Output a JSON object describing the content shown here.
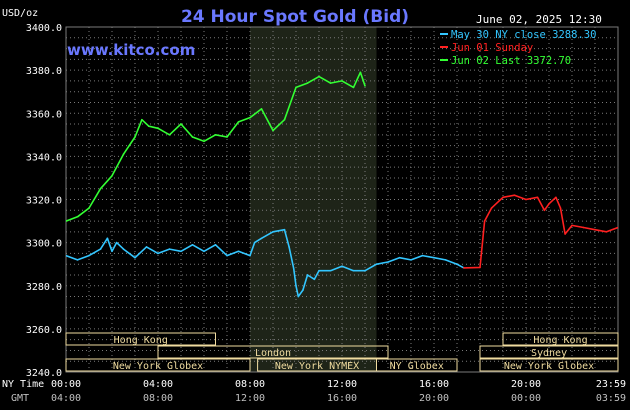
{
  "header": {
    "title": "24 Hour Spot Gold (Bid)",
    "date": "June 02, 2025 12:30",
    "website": "www.kitco.com",
    "currency_label": "USD/oz"
  },
  "legend": {
    "items": [
      {
        "label": "May 30 NY close 3288.30",
        "color": "#33c6ff"
      },
      {
        "label": "Jun 01 Sunday",
        "color": "#ff2020"
      },
      {
        "label": "Jun 02 Last 3372.70",
        "color": "#33ff33"
      }
    ]
  },
  "colors": {
    "background": "#000000",
    "grid": "#7a7a7a",
    "session_box": "#f0dca0",
    "axis_text": "#ffffff",
    "secondary_text": "#c0c0c0",
    "title": "#6a78ff",
    "highlight": "#1e2418"
  },
  "axis_labels": {
    "ny_time": "NY Time",
    "gmt": "GMT"
  },
  "market_sessions": [
    {
      "label": "Hong Kong",
      "start": 0,
      "end": 6.5
    },
    {
      "label": "London",
      "start": 4,
      "end": 14
    },
    {
      "label": "New York Globex",
      "start": 0,
      "end": 8
    },
    {
      "label": "New York NYMEX",
      "start": 8.33,
      "end": 13.5
    },
    {
      "label": "NY Globex",
      "start": 13.5,
      "end": 17
    },
    {
      "label": "Hong Kong",
      "start": 19,
      "end": 24
    },
    {
      "label": "Sydney",
      "start": 18,
      "end": 24
    },
    {
      "label": "New York Globex",
      "start": 18,
      "end": 24
    }
  ],
  "chart_data": {
    "type": "line",
    "ylim": [
      3240,
      3400
    ],
    "xlim": [
      0,
      24
    ],
    "y_ticks": [
      3240,
      3260,
      3280,
      3300,
      3320,
      3340,
      3360,
      3380,
      3400
    ],
    "y_tick_labels": [
      "3240.0",
      "3260.0",
      "3280.0",
      "3300.0",
      "3320.0",
      "3340.0",
      "3360.0",
      "3380.0",
      "3400.0"
    ],
    "x_ticks": [
      0,
      4,
      8,
      12,
      16,
      20,
      24
    ],
    "x_tick_labels_ny": [
      "00:00",
      "04:00",
      "08:00",
      "12:00",
      "16:00",
      "20:00",
      "23:59"
    ],
    "x_tick_labels_gmt": [
      "04:00",
      "08:00",
      "12:00",
      "16:00",
      "20:00",
      "00:00",
      "03:59"
    ],
    "highlight_range": [
      8,
      13.5
    ],
    "grid": true,
    "series": [
      {
        "name": "May 30 NY close 3288.30",
        "color": "#33c6ff",
        "x": [
          0,
          0.5,
          1,
          1.5,
          1.8,
          2,
          2.2,
          2.5,
          3,
          3.5,
          4,
          4.5,
          5,
          5.5,
          6,
          6.5,
          7,
          7.5,
          8,
          8.2,
          8.5,
          9,
          9.5,
          9.7,
          9.9,
          10,
          10.1,
          10.3,
          10.5,
          10.8,
          11,
          11.5,
          12,
          12.5,
          13,
          13.5,
          14,
          14.5,
          15,
          15.5,
          16,
          16.5,
          17,
          17.3
        ],
        "y": [
          3294,
          3292,
          3294,
          3297,
          3302,
          3296,
          3300,
          3297,
          3293,
          3298,
          3295,
          3297,
          3296,
          3299,
          3296,
          3299,
          3294,
          3296,
          3294,
          3300,
          3302,
          3305,
          3306,
          3298,
          3288,
          3280,
          3275,
          3278,
          3285,
          3283,
          3287,
          3287,
          3289,
          3287,
          3287,
          3290,
          3291,
          3293,
          3292,
          3294,
          3293,
          3292,
          3290,
          3288.3
        ]
      },
      {
        "name": "Jun 01 Sunday",
        "color": "#ff2020",
        "x": [
          17.3,
          18,
          18.2,
          18.5,
          19,
          19.5,
          20,
          20.5,
          20.8,
          21,
          21.3,
          21.5,
          21.7,
          22,
          22.5,
          23,
          23.5,
          24
        ],
        "y": [
          3288.3,
          3288.5,
          3310,
          3316,
          3321,
          3322,
          3320,
          3321,
          3315,
          3318,
          3321,
          3316,
          3304,
          3308,
          3307,
          3306,
          3305,
          3307
        ]
      },
      {
        "name": "Jun 02 Last 3372.70",
        "color": "#33ff33",
        "x": [
          0,
          0.5,
          1,
          1.5,
          2,
          2.5,
          3,
          3.3,
          3.6,
          4,
          4.5,
          5,
          5.5,
          6,
          6.5,
          7,
          7.5,
          8,
          8.5,
          9,
          9.5,
          10,
          10.5,
          11,
          11.5,
          12,
          12.5,
          12.8,
          13
        ],
        "y": [
          3310,
          3312,
          3316,
          3325,
          3331,
          3341,
          3349,
          3357,
          3354,
          3353,
          3350,
          3355,
          3349,
          3347,
          3350,
          3349,
          3356,
          3358,
          3362,
          3352,
          3357,
          3372,
          3374,
          3377,
          3374,
          3375,
          3372,
          3379,
          3372.7
        ]
      }
    ]
  }
}
